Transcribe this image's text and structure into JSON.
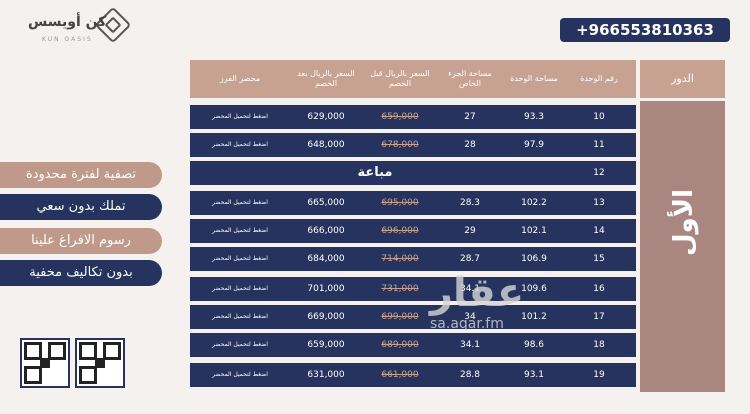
{
  "logo": {
    "name": "كن أويسس",
    "sub": "KUN OASIS"
  },
  "phone": "+966553810363",
  "floor": {
    "header": "الدور",
    "name": "الأول"
  },
  "columns": [
    "رقم الوحدة",
    "مساحة الوحدة",
    "مساحة الجزء الخاص",
    "السعر بالريال قبل الخصم",
    "السعر بالريال بعد الخصم",
    "محضر الفرز"
  ],
  "rows": [
    {
      "unit": "10",
      "area": "93.3",
      "private": "27",
      "before": "659,000",
      "after": "629,000",
      "doc": "اضغط لتحميل المحضر"
    },
    {
      "unit": "11",
      "area": "97.9",
      "private": "28",
      "before": "678,000",
      "after": "648,000",
      "doc": "اضغط لتحميل المحضر"
    },
    {
      "unit": "12",
      "sold": "مباعة"
    },
    {
      "unit": "13",
      "area": "102.2",
      "private": "28.3",
      "before": "695,000",
      "after": "665,000",
      "doc": "اضغط لتحميل المحضر"
    },
    {
      "unit": "14",
      "area": "102.1",
      "private": "29",
      "before": "696,000",
      "after": "666,000",
      "doc": "اضغط لتحميل المحضر"
    },
    {
      "unit": "15",
      "area": "106.9",
      "private": "28.7",
      "before": "714,000",
      "after": "684,000",
      "doc": "اضغط لتحميل المحضر"
    },
    {
      "unit": "16",
      "area": "109.6",
      "private": "34.1",
      "before": "731,000",
      "after": "701,000",
      "doc": "اضغط لتحميل المحضر"
    },
    {
      "unit": "17",
      "area": "101.2",
      "private": "34",
      "before": "699,000",
      "after": "669,000",
      "doc": "اضغط لتحميل المحضر"
    },
    {
      "unit": "18",
      "area": "98.6",
      "private": "34.1",
      "before": "689,000",
      "after": "659,000",
      "doc": "اضغط لتحميل المحضر"
    },
    {
      "unit": "19",
      "area": "93.1",
      "private": "28.8",
      "before": "661,000",
      "after": "631,000",
      "doc": "اضغط لتحميل المحضر"
    }
  ],
  "badges": [
    "تصفية لفترة محدودة",
    "تملك بدون سعي",
    "رسوم الافراغ علينا",
    "بدون تكاليف مخفية"
  ],
  "watermark": {
    "main": "عقار",
    "url": "sa.aqar.fm"
  },
  "colors": {
    "navy": "#26335e",
    "rose": "#c7a192",
    "accent": "#a98780"
  }
}
